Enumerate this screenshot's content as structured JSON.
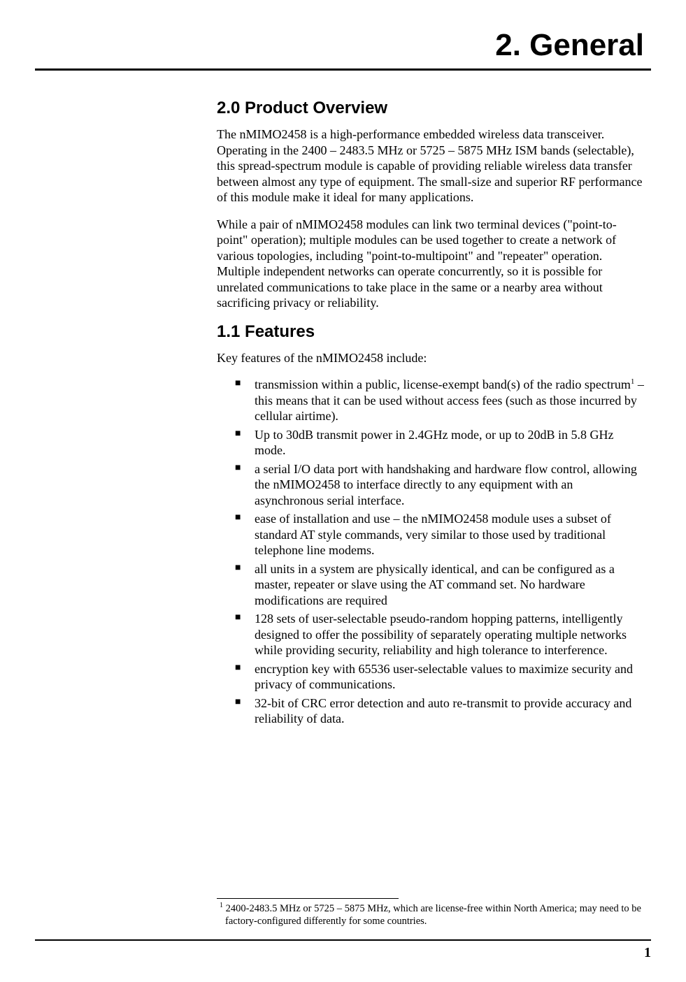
{
  "chapter": {
    "title": "2.  General"
  },
  "sections": [
    {
      "heading": "2.0   Product Overview",
      "paragraphs": [
        "The nMIMO2458 is a high-performance embedded wireless data transceiver.  Operating in the 2400 – 2483.5 MHz or 5725 – 5875 MHz ISM bands (selectable), this spread-spectrum module is capable of providing reliable wireless data transfer between almost any type of equipment.  The small-size and superior RF performance of this module make it ideal for many applications.",
        "While a pair of nMIMO2458 modules can link two terminal devices (\"point-to-point\" operation); multiple modules can be used together to create a network of various topologies, including \"point-to-multipoint\" and \"repeater\" operation. Multiple independent networks can operate concurrently, so it is possible for unrelated communications to take place in the same or a nearby area without sacrificing privacy or reliability."
      ]
    },
    {
      "heading": "1.1  Features",
      "intro": "Key features of the nMIMO2458 include:",
      "features": [
        {
          "pre": "transmission within a public, license-exempt band(s) of the radio spectrum",
          "sup": "1",
          "post": " – this means that it can be used without access fees (such as those incurred by cellular airtime)."
        },
        {
          "text": "Up to 30dB transmit power in 2.4GHz mode, or up to 20dB in 5.8 GHz mode."
        },
        {
          "text": "a serial I/O data port  with handshaking and hardware flow control, allowing the nMIMO2458 to interface directly to any equipment with an asynchronous serial interface."
        },
        {
          "text": "ease of installation and use – the nMIMO2458 module uses a subset of standard AT style commands, very similar to those used by traditional telephone line modems."
        },
        {
          "text": "all units in a system are physically identical, and can be configured as a master, repeater or slave using the AT command set. No hardware modifications are required"
        },
        {
          "text": "128 sets of user-selectable pseudo-random hopping patterns, intelligently designed to offer the possibility of separately operating multiple networks while providing security, reliability and high tolerance to interference."
        },
        {
          "text": "encryption key with 65536 user-selectable values to maximize security and privacy of communications."
        },
        {
          "text": "32-bit of CRC error detection and auto re-transmit to provide accuracy and reliability of data."
        }
      ]
    }
  ],
  "footnote": {
    "mark": "1",
    "text": " 2400-2483.5 MHz or 5725 – 5875 MHz, which are license-free within North America; may need to be factory-configured differently for some countries."
  },
  "page_number": "1",
  "colors": {
    "text": "#000000",
    "background": "#ffffff",
    "rule": "#000000"
  },
  "typography": {
    "chapter_title_fontsize": 44,
    "section_heading_fontsize": 24,
    "body_fontsize": 18,
    "footnote_fontsize": 14.5,
    "heading_family": "Arial",
    "body_family": "Times New Roman"
  }
}
